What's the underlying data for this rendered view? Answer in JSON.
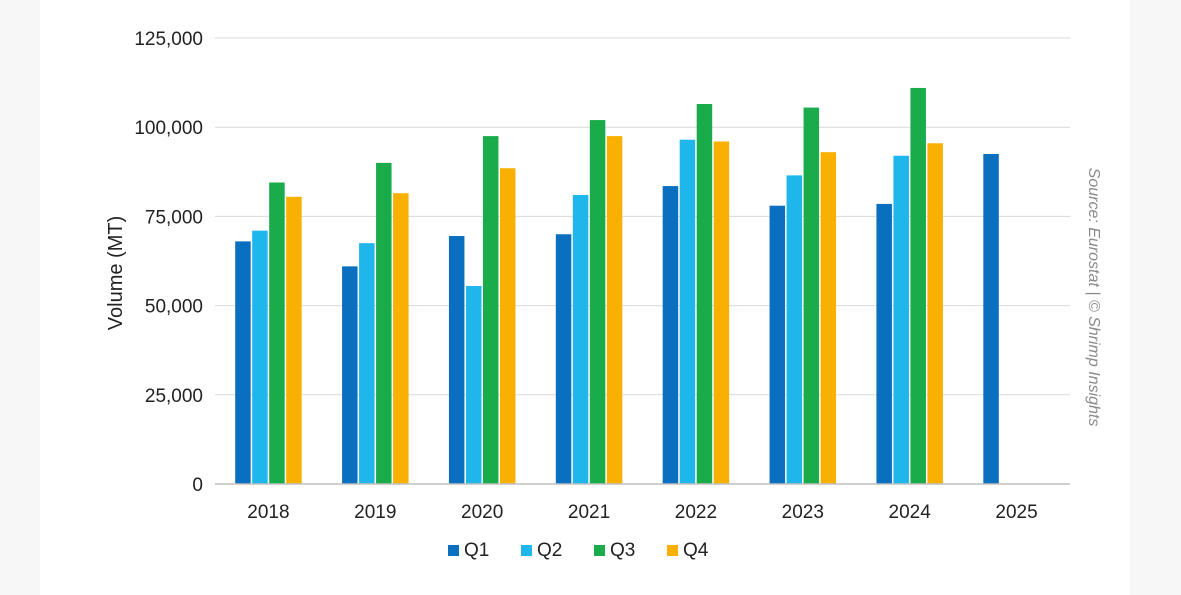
{
  "chart_data": {
    "type": "bar",
    "categories": [
      "2018",
      "2019",
      "2020",
      "2021",
      "2022",
      "2023",
      "2024",
      "2025"
    ],
    "series": [
      {
        "name": "Q1",
        "color": "#0b6fbf",
        "values": [
          68000,
          61000,
          69500,
          70000,
          83500,
          78000,
          78500,
          92500
        ]
      },
      {
        "name": "Q2",
        "color": "#1fb6ec",
        "values": [
          71000,
          67500,
          55500,
          81000,
          96500,
          86500,
          92000,
          null
        ]
      },
      {
        "name": "Q3",
        "color": "#1aab4b",
        "values": [
          84500,
          90000,
          97500,
          102000,
          106500,
          105500,
          111000,
          null
        ]
      },
      {
        "name": "Q4",
        "color": "#f9b000",
        "values": [
          80500,
          81500,
          88500,
          97500,
          96000,
          93000,
          95500,
          null
        ]
      }
    ],
    "ylabel": "Volume (MT)",
    "ylim": [
      0,
      125000
    ],
    "yticks": [
      0,
      25000,
      50000,
      75000,
      100000,
      125000
    ],
    "ytick_labels": [
      "0",
      "25,000",
      "50,000",
      "75,000",
      "100,000",
      "125,000"
    ],
    "grid": true,
    "legend": "bottom",
    "source_note": "Source: Eurostat | © Shrimp Insights"
  }
}
